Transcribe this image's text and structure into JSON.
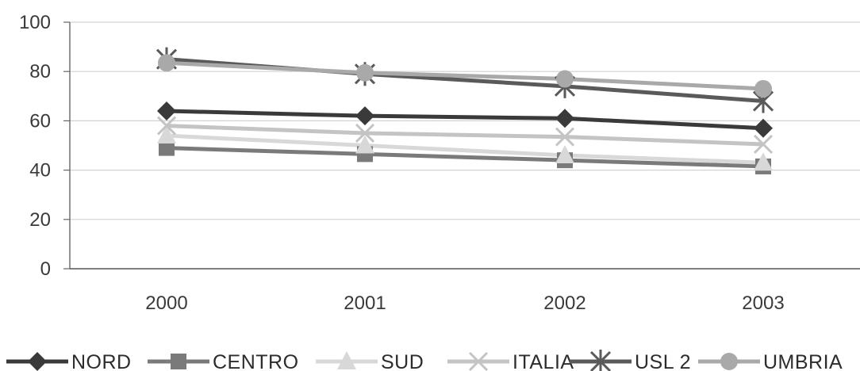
{
  "chart_data": {
    "type": "line",
    "categories": [
      "2000",
      "2001",
      "2002",
      "2003"
    ],
    "ylim": [
      0,
      100
    ],
    "yticks": [
      0,
      20,
      40,
      60,
      80,
      100
    ],
    "grid": true,
    "legend_position": "bottom",
    "series": [
      {
        "name": "NORD",
        "values": [
          64,
          62,
          61,
          57
        ],
        "color": "#3a3a3a",
        "marker": "diamond"
      },
      {
        "name": "CENTRO",
        "values": [
          49,
          46.5,
          44,
          41.5
        ],
        "color": "#7a7a7a",
        "marker": "square"
      },
      {
        "name": "SUD",
        "values": [
          54,
          50,
          46,
          43
        ],
        "color": "#d8d8d8",
        "marker": "triangle"
      },
      {
        "name": "ITALIA",
        "values": [
          58,
          55,
          53.5,
          50.5
        ],
        "color": "#c4c4c4",
        "marker": "x"
      },
      {
        "name": "USL 2",
        "values": [
          85,
          79,
          74,
          68
        ],
        "color": "#5a5a5a",
        "marker": "star"
      },
      {
        "name": "UMBRIA",
        "values": [
          83.5,
          79.5,
          77,
          73
        ],
        "color": "#a9a9a9",
        "marker": "circle"
      }
    ]
  }
}
